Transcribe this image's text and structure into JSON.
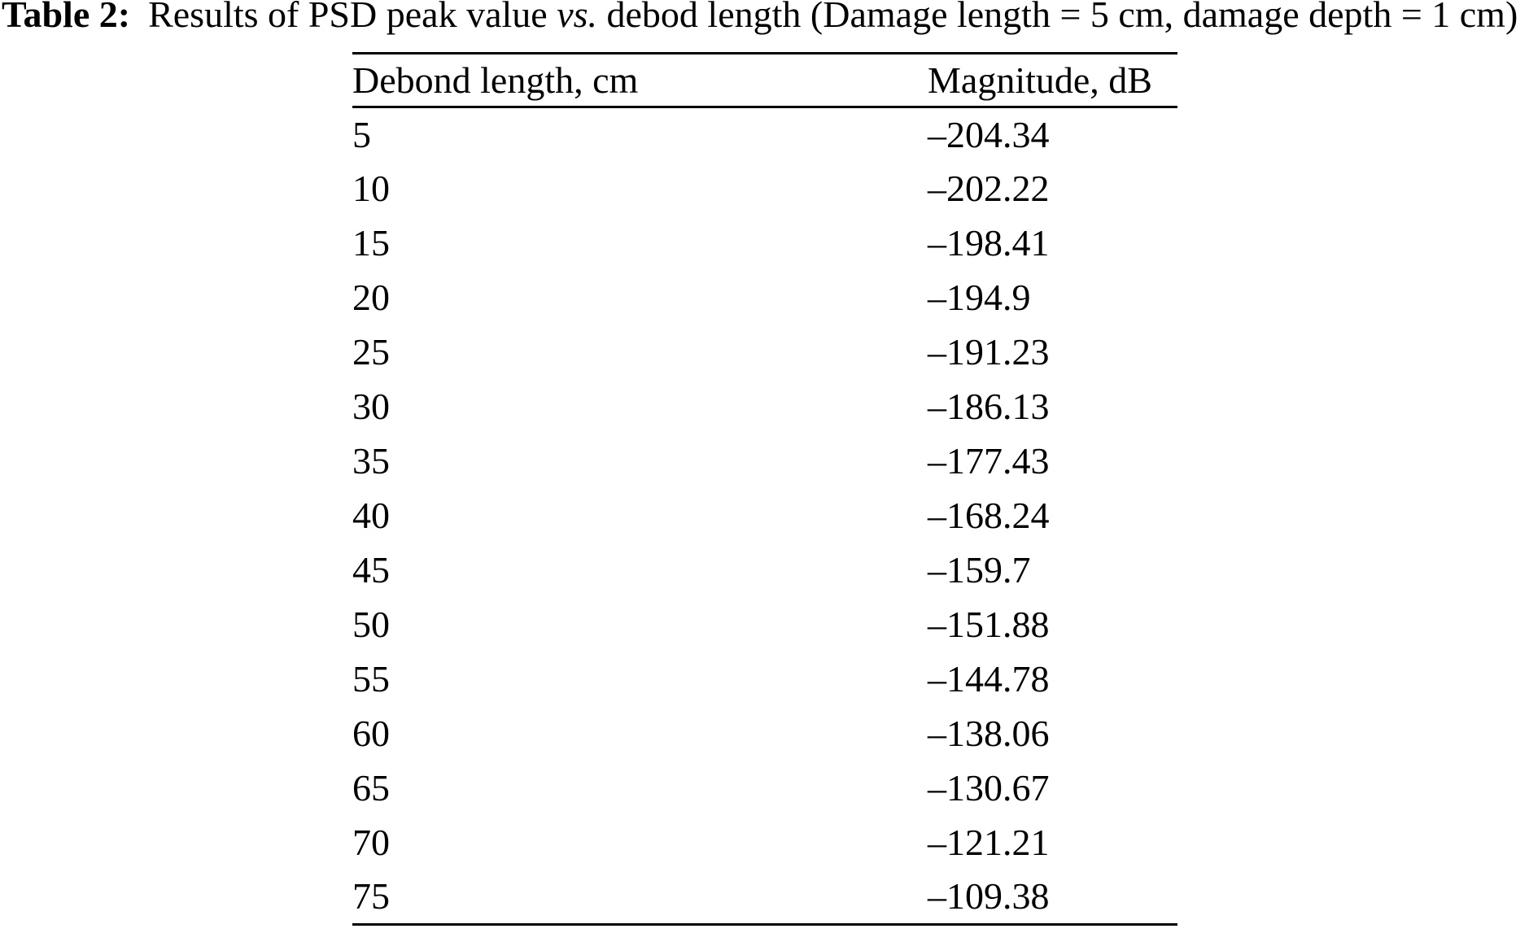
{
  "page": {
    "background_color": "#ffffff",
    "text_color": "#000000"
  },
  "caption": {
    "label": "Table 2:",
    "text_before_italic": "Results of PSD peak value",
    "italic_abbr": "vs.",
    "text_after_italic": "debod length (Damage length = 5 cm, damage depth = 1 cm)"
  },
  "table": {
    "columns": [
      {
        "label": "Debond length, cm"
      },
      {
        "label": "Magnitude, dB"
      }
    ],
    "rows": [
      {
        "debond_length_cm": "5",
        "magnitude_db": "–204.34"
      },
      {
        "debond_length_cm": "10",
        "magnitude_db": "–202.22"
      },
      {
        "debond_length_cm": "15",
        "magnitude_db": "–198.41"
      },
      {
        "debond_length_cm": "20",
        "magnitude_db": "–194.9"
      },
      {
        "debond_length_cm": "25",
        "magnitude_db": "–191.23"
      },
      {
        "debond_length_cm": "30",
        "magnitude_db": "–186.13"
      },
      {
        "debond_length_cm": "35",
        "magnitude_db": "–177.43"
      },
      {
        "debond_length_cm": "40",
        "magnitude_db": "–168.24"
      },
      {
        "debond_length_cm": "45",
        "magnitude_db": "–159.7"
      },
      {
        "debond_length_cm": "50",
        "magnitude_db": "–151.88"
      },
      {
        "debond_length_cm": "55",
        "magnitude_db": "–144.78"
      },
      {
        "debond_length_cm": "60",
        "magnitude_db": "–138.06"
      },
      {
        "debond_length_cm": "65",
        "magnitude_db": "–130.67"
      },
      {
        "debond_length_cm": "70",
        "magnitude_db": "–121.21"
      },
      {
        "debond_length_cm": "75",
        "magnitude_db": "–109.38"
      }
    ]
  }
}
